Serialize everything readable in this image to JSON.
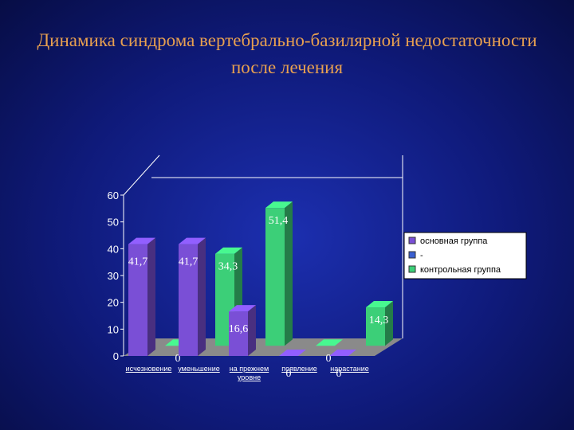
{
  "title": "Динамика синдрома вертебрально-базилярной недостаточности после лечения",
  "chart_data": {
    "type": "bar3d",
    "categories": [
      "исчезновение",
      "уменьшение",
      "на прежнем уровне",
      "появление",
      "нарастание"
    ],
    "series": [
      {
        "name": "основная группа",
        "color": "#7a4fd6",
        "values": [
          41.7,
          41.7,
          16.6,
          0,
          0
        ],
        "value_labels": [
          "41,7",
          "41,7",
          "16,6",
          "0",
          "0"
        ]
      },
      {
        "name": "-",
        "color": "#3a5fd0",
        "values": [
          null,
          null,
          null,
          null,
          null
        ]
      },
      {
        "name": "контрольная группа",
        "color": "#3ccf78",
        "values": [
          0,
          34.3,
          51.4,
          0,
          14.3
        ],
        "value_labels": [
          "0",
          "34,3",
          "51,4",
          "0",
          "14,3"
        ]
      }
    ],
    "ylim": [
      0,
      60
    ],
    "yticks": [
      0,
      10,
      20,
      30,
      40,
      50,
      60
    ],
    "grid": true,
    "legend": "right"
  }
}
